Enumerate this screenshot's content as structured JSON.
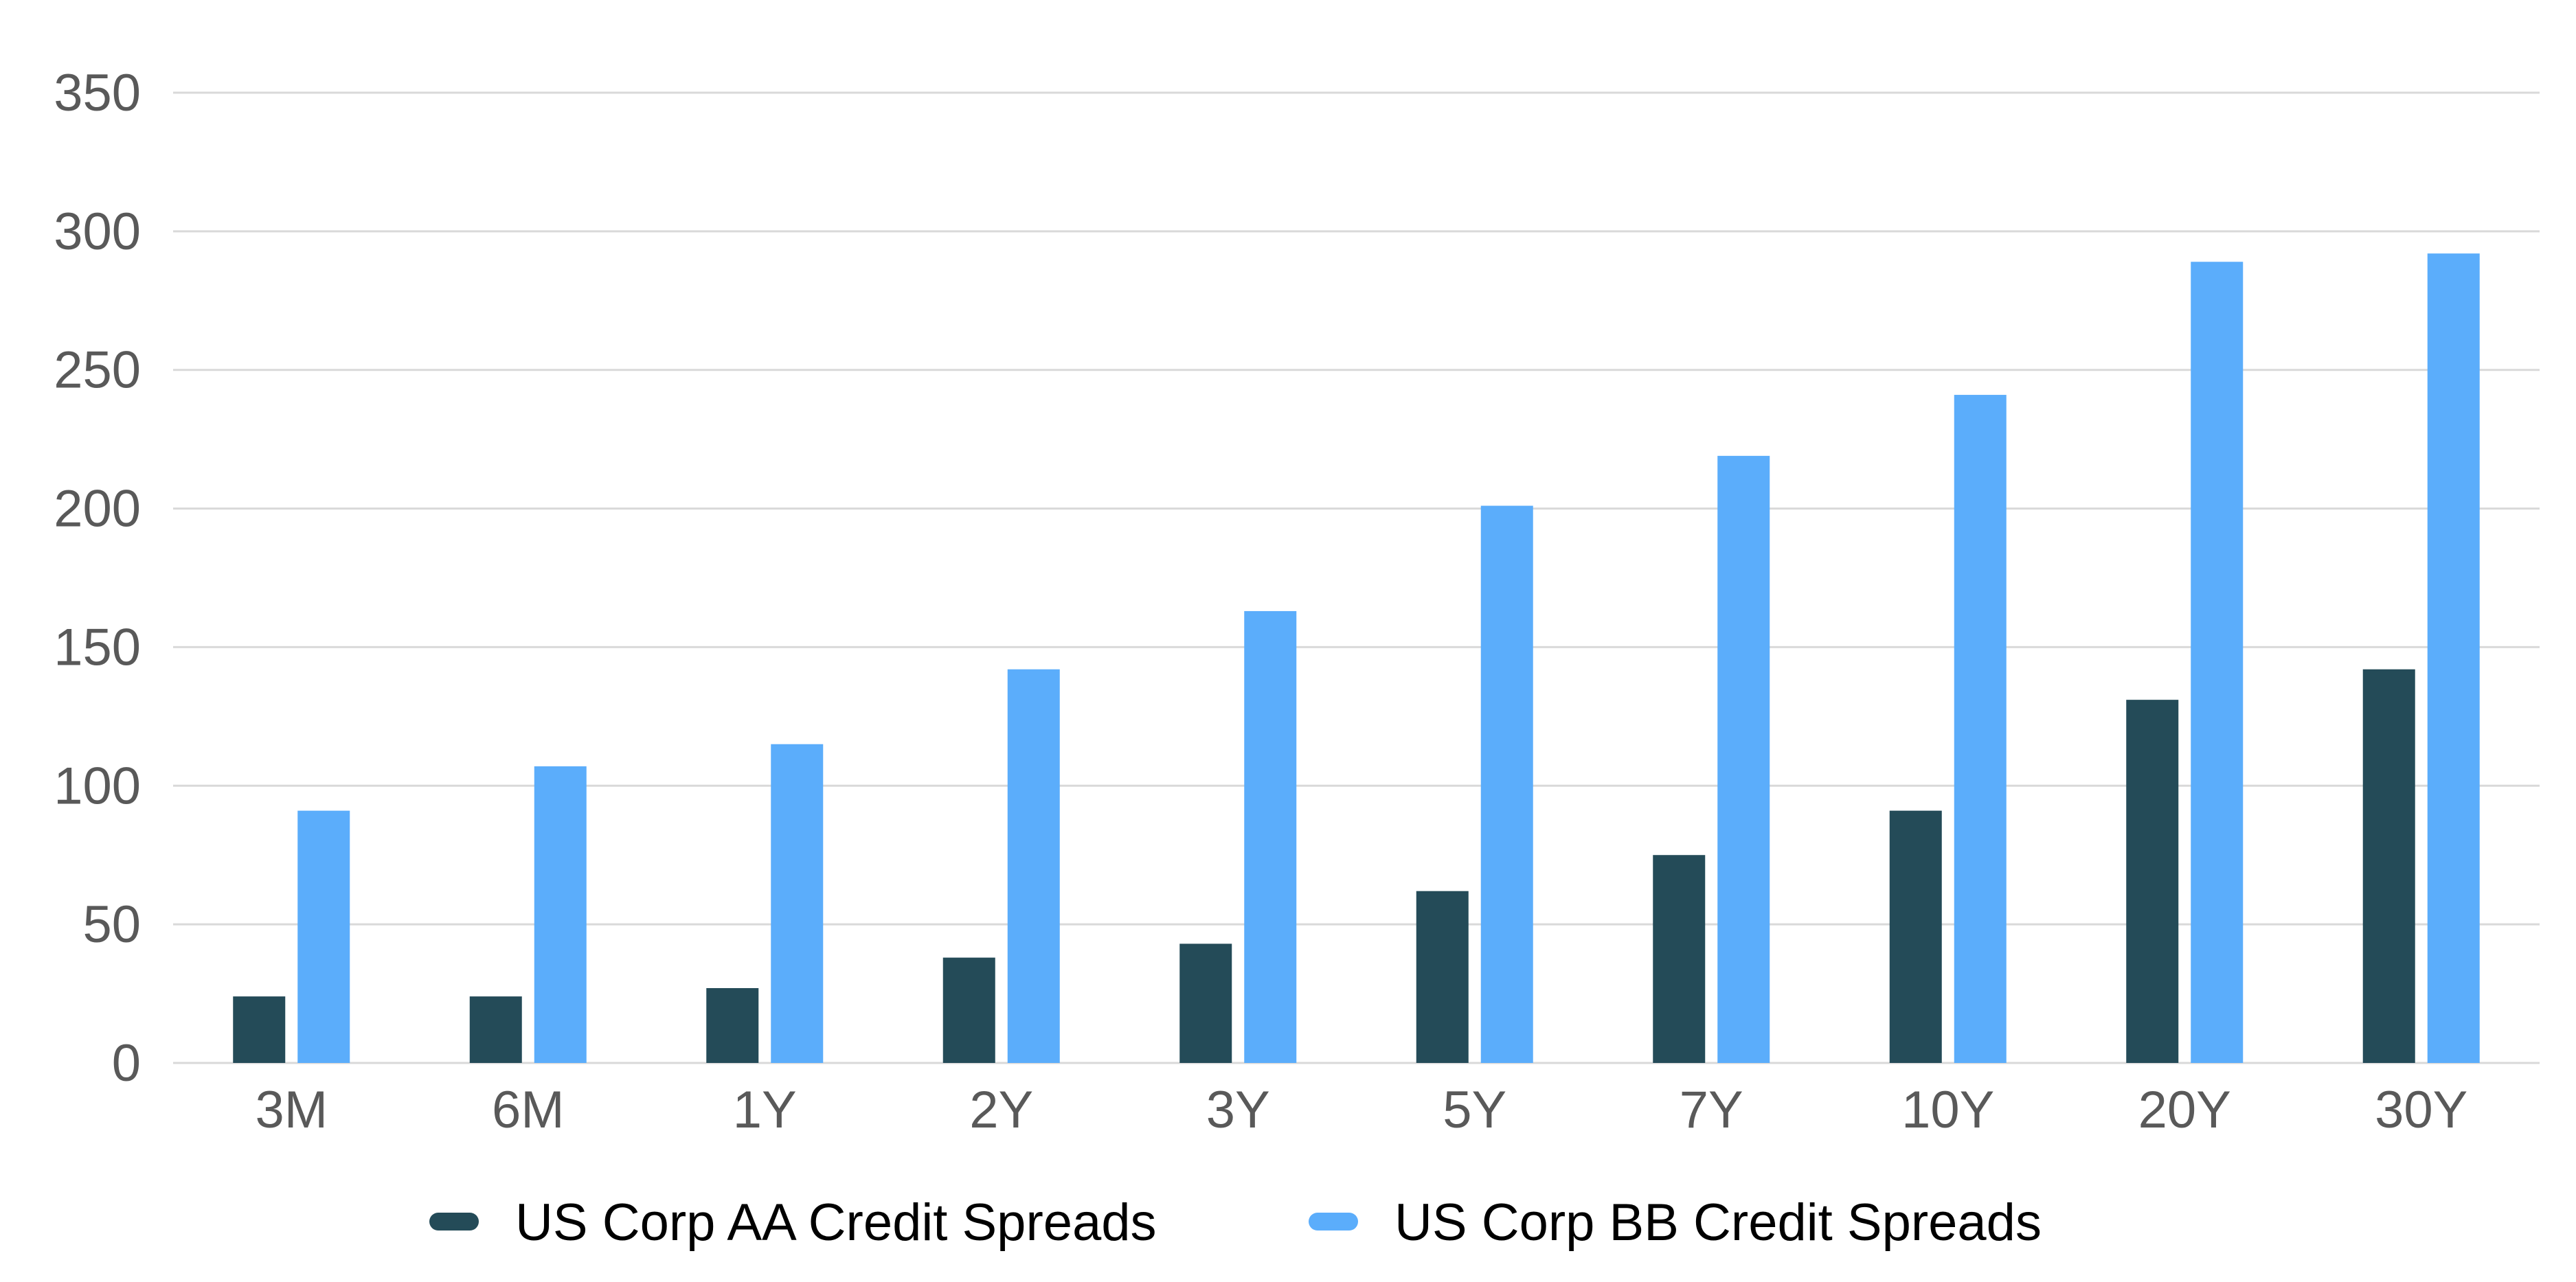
{
  "chart_data": {
    "type": "bar",
    "categories": [
      "3M",
      "6M",
      "1Y",
      "2Y",
      "3Y",
      "5Y",
      "7Y",
      "10Y",
      "20Y",
      "30Y"
    ],
    "series": [
      {
        "name": "US Corp AA Credit Spreads",
        "color": "#244b58",
        "values": [
          24,
          24,
          27,
          38,
          43,
          62,
          75,
          91,
          131,
          142
        ]
      },
      {
        "name": "US Corp BB Credit Spreads",
        "color": "#5badfb",
        "values": [
          91,
          107,
          115,
          142,
          163,
          201,
          219,
          241,
          289,
          292
        ]
      }
    ],
    "yticks": [
      "0",
      "50",
      "100",
      "150",
      "200",
      "250",
      "300",
      "350"
    ],
    "ylim": [
      0,
      350
    ],
    "grid": true,
    "legend": "bottom",
    "title": "",
    "xlabel": "",
    "ylabel": ""
  }
}
